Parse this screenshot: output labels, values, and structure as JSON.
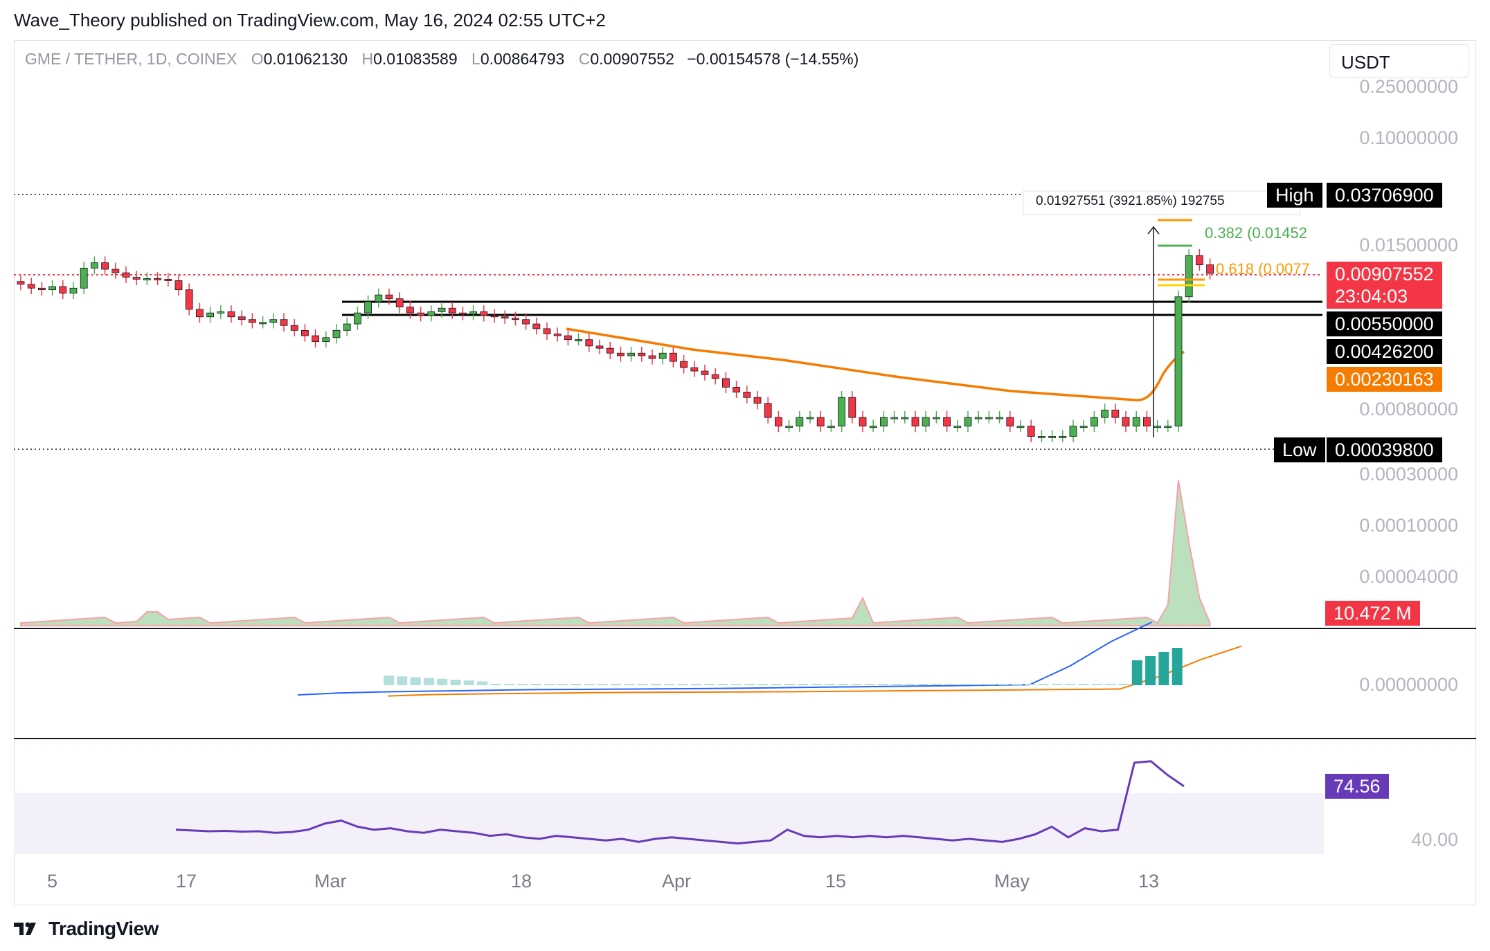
{
  "header": {
    "publisher": "Wave_Theory published on TradingView.com, May 16, 2024 02:55 UTC+2"
  },
  "symbol_bar": {
    "symbol": "GME / TETHER, 1D, COINEX",
    "open_key": "O",
    "open": "0.01062130",
    "high_key": "H",
    "high": "0.01083589",
    "low_key": "L",
    "low": "0.00864793",
    "close_key": "C",
    "close": "0.00907552",
    "change": "−0.00154578 (−14.55%)"
  },
  "currency_button": "USDT",
  "footer": {
    "brand": "TradingView"
  },
  "colors": {
    "up": "#4caf50",
    "down": "#f23645",
    "orange": "#f57c00",
    "macd": "#2962ff",
    "rsi": "#673ab7",
    "fib_green": "#4caf50",
    "fib_orange": "#ff9800"
  },
  "price_axis": {
    "ticks": [
      "0.25000000",
      "0.10000000",
      "0.01500000",
      "0.00080000",
      "0.00030000",
      "0.00010000",
      "0.00004000"
    ],
    "tags": {
      "high_label": "High",
      "high_value": "0.03706900",
      "last_price": "0.00907552",
      "countdown": "23:04:03",
      "level_1": "0.00550000",
      "level_2": "0.00426200",
      "ma_value": "0.00230163",
      "low_label": "Low",
      "low_value": "0.00039800",
      "volume": "10.472 M"
    }
  },
  "fib": {
    "level_382": "0.382 (0.01452",
    "level_618": "0.618 (0.0077"
  },
  "measure_label": "0.01927551 (3921.85%) 192755",
  "macd_axis": {
    "zero": "0.00000000"
  },
  "rsi_axis": {
    "value": "74.56",
    "level": "40.00"
  },
  "time_axis": [
    "5",
    "17",
    "Mar",
    "18",
    "Apr",
    "15",
    "May",
    "13"
  ],
  "chart_data": [
    {
      "type": "candlestick",
      "title": "GME / TETHER, 1D, COINEX",
      "scale": "log",
      "x_range": [
        "2024-02-04",
        "2024-05-15"
      ],
      "y_ticks": [
        0.25,
        0.1,
        0.015,
        0.0008,
        0.0003,
        0.0001,
        4e-05
      ],
      "close_series": [
        0.0075,
        0.007,
        0.0068,
        0.0072,
        0.0064,
        0.007,
        0.01,
        0.011,
        0.0098,
        0.0092,
        0.0085,
        0.0082,
        0.0083,
        0.0082,
        0.008,
        0.0068,
        0.0048,
        0.0042,
        0.0045,
        0.0046,
        0.0042,
        0.004,
        0.0038,
        0.0038,
        0.004,
        0.0036,
        0.0033,
        0.003,
        0.0027,
        0.0029,
        0.0033,
        0.0037,
        0.0045,
        0.0055,
        0.0062,
        0.0058,
        0.005,
        0.0045,
        0.0043,
        0.0046,
        0.0049,
        0.0045,
        0.0044,
        0.0046,
        0.0043,
        0.0042,
        0.0041,
        0.004,
        0.0037,
        0.0034,
        0.0031,
        0.003,
        0.0028,
        0.0028,
        0.0025,
        0.0024,
        0.0022,
        0.0021,
        0.0022,
        0.0021,
        0.002,
        0.0022,
        0.0019,
        0.0017,
        0.0016,
        0.0015,
        0.0014,
        0.0012,
        0.0011,
        0.001,
        0.0009,
        0.0007,
        0.0006,
        0.0006,
        0.0007,
        0.0007,
        0.0006,
        0.0006,
        0.001,
        0.0007,
        0.0006,
        0.0006,
        0.0007,
        0.0007,
        0.0007,
        0.0006,
        0.0007,
        0.0007,
        0.0006,
        0.0006,
        0.0007,
        0.0007,
        0.0007,
        0.0007,
        0.0006,
        0.0006,
        0.0005,
        0.0005,
        0.0005,
        0.0005,
        0.0006,
        0.0006,
        0.0007,
        0.0008,
        0.0007,
        0.0006,
        0.0007,
        0.0006,
        0.0006,
        0.0006,
        0.006,
        0.0125,
        0.0106,
        0.0091
      ],
      "high": 0.037069,
      "low": 0.000398,
      "last": 0.00907552,
      "horizontal_levels": [
        0.0055,
        0.004262
      ],
      "moving_average_last": 0.00230163,
      "fib_levels": [
        {
          "ratio": 0.382,
          "value": 0.01452
        },
        {
          "ratio": 0.618,
          "value": 0.0077
        }
      ]
    },
    {
      "type": "area",
      "title": "Volume",
      "last_value": "10.472 M",
      "spike_index": 110
    },
    {
      "type": "line",
      "title": "MACD",
      "series": [
        {
          "values": [
            -4,
            -3.2,
            -2.8,
            -2.5,
            -2.3,
            -2.0,
            -1.8,
            -1.7,
            -1.6,
            -1.5,
            -1.4,
            -1.2,
            -1.0,
            -0.8,
            -0.6,
            -0.4,
            -0.2,
            0.0,
            0.2,
            8,
            18,
            26
          ]
        }
      ]
    },
    {
      "type": "line",
      "title": "RSI",
      "last_value": 74.56,
      "series": [
        {
          "values": [
            46,
            45.5,
            45,
            45.2,
            44.8,
            45,
            44,
            44.5,
            46,
            50,
            52,
            48,
            46,
            47,
            45,
            44,
            46,
            45,
            44,
            42,
            43,
            41,
            40,
            42,
            41,
            40,
            39,
            40,
            38,
            40,
            41,
            40,
            39,
            38,
            37,
            38,
            39,
            46,
            42,
            41,
            42,
            41,
            42,
            41,
            42,
            41,
            40,
            39,
            40,
            39,
            38,
            40,
            43,
            48,
            41,
            47,
            45,
            46,
            90,
            91,
            82,
            74.56
          ]
        }
      ]
    }
  ]
}
